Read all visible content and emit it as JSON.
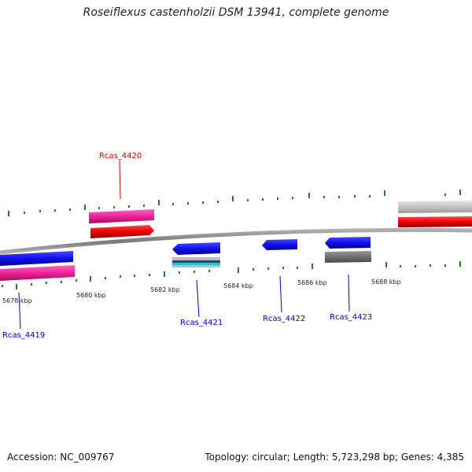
{
  "header": {
    "title": "Roseiflexus castenholzii DSM 13941, complete genome"
  },
  "footer": {
    "accession": "Accession: NC_009767",
    "summary": "Topology: circular; Length: 5,723,298 bp; Genes: 4,385"
  },
  "scale": {
    "ticks": [
      "5678 kbp",
      "5680 kbp",
      "5682 kbp",
      "5684 kbp",
      "5686 kbp",
      "5688 kbp"
    ]
  },
  "genes": [
    {
      "name": "Rcas_4419",
      "strand": "reverse",
      "color": "#0000cc"
    },
    {
      "name": "Rcas_4420",
      "strand": "forward",
      "color": "#cc0000"
    },
    {
      "name": "Rcas_4421",
      "strand": "reverse",
      "color": "#0000cc"
    },
    {
      "name": "Rcas_4422",
      "strand": "reverse",
      "color": "#0000cc"
    },
    {
      "name": "Rcas_4423",
      "strand": "reverse",
      "color": "#0000cc"
    }
  ],
  "colors": {
    "backbone": "#888888",
    "tick": "#2a7a2a",
    "cds_forward": "#ee0000",
    "cds_reverse": "#1010ee",
    "feature_magenta": "#ee2299",
    "feature_grey": "#999999",
    "feature_cyan": "#33bbcc"
  }
}
